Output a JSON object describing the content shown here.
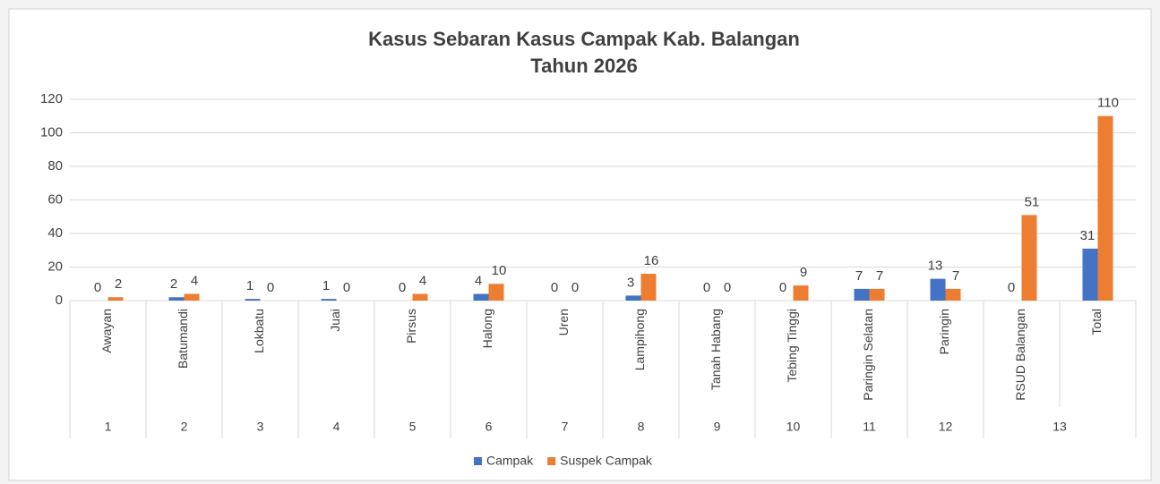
{
  "chart_data": {
    "type": "bar",
    "title": [
      "Kasus Sebaran Kasus Campak Kab. Balangan",
      "Tahun 2026"
    ],
    "categories": [
      "Awayan",
      "Batumandi",
      "Lokbatu",
      "Juai",
      "Pirsus",
      "Halong",
      "Uren",
      "Lampihong",
      "Tanah Habang",
      "Tebing Tinggi",
      "Paringin Selatan",
      "Paringin",
      "RSUD Balangan",
      "Total"
    ],
    "category_groups": [
      1,
      2,
      3,
      4,
      5,
      6,
      7,
      8,
      9,
      10,
      11,
      12,
      13,
      13
    ],
    "series": [
      {
        "name": "Campak",
        "color": "#4472c4",
        "values": [
          0,
          2,
          1,
          1,
          0,
          4,
          0,
          3,
          0,
          0,
          7,
          13,
          0,
          31
        ]
      },
      {
        "name": "Suspek Campak",
        "color": "#ed7d31",
        "values": [
          2,
          4,
          0,
          0,
          4,
          10,
          0,
          16,
          0,
          9,
          7,
          7,
          51,
          110
        ]
      }
    ],
    "ylim": [
      0,
      120
    ],
    "yticks": [
      0,
      20,
      40,
      60,
      80,
      100,
      120
    ],
    "grid": true,
    "legend": "bottom"
  }
}
